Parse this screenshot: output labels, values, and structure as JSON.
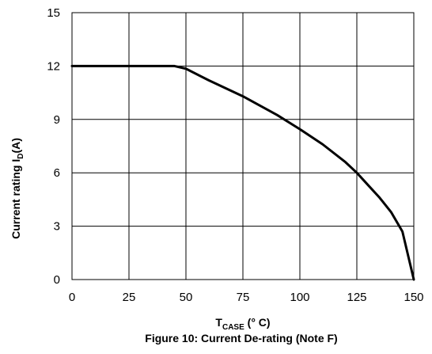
{
  "chart_data": {
    "type": "line",
    "caption": "Figure 10: Current De-rating (Note F)",
    "xlabel": {
      "main": "T",
      "sub": "CASE",
      "rest": " (° C)"
    },
    "ylabel": {
      "main": "Current rating I",
      "sub": "D",
      "rest": "(A)"
    },
    "xlim": [
      0,
      150
    ],
    "ylim": [
      0,
      15
    ],
    "x_ticks": [
      0,
      25,
      50,
      75,
      100,
      125,
      150
    ],
    "y_ticks": [
      0,
      3,
      6,
      9,
      12,
      15
    ],
    "grid": true,
    "series": [
      {
        "color": "#000000",
        "x": [
          0,
          45,
          50,
          60,
          75,
          90,
          100,
          110,
          120,
          125,
          130,
          135,
          140,
          145,
          150
        ],
        "y": [
          12,
          12,
          11.85,
          11.2,
          10.3,
          9.25,
          8.45,
          7.6,
          6.6,
          6.0,
          5.3,
          4.6,
          3.8,
          2.7,
          0
        ]
      }
    ],
    "colors": {
      "grid": "#000000",
      "line": "#000000",
      "text": "#000000"
    }
  }
}
